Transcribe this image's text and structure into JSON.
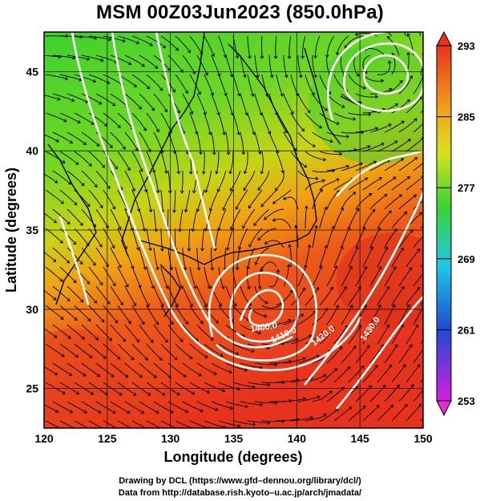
{
  "title": "MSM 00Z03Jun2023 (850.0hPa)",
  "x_axis": {
    "label": "Longitude (degrees)",
    "ticks": [
      "120",
      "125",
      "130",
      "135",
      "140",
      "145",
      "150"
    ],
    "range": [
      120,
      150
    ]
  },
  "y_axis": {
    "label": "Latitude  (degrees)",
    "ticks": [
      "25",
      "30",
      "35",
      "40",
      "45"
    ],
    "range": [
      22.5,
      47.5
    ]
  },
  "colorbar": {
    "ticks": [
      "293",
      "285",
      "277",
      "269",
      "261",
      "253"
    ],
    "min": 253,
    "max": 293
  },
  "contour_labels": [
    "1400.0",
    "1410.0",
    "1420.0",
    "1430.0"
  ],
  "footer": {
    "line1": "Drawing by DCL (https://www.gfd–dennou.org/library/dcl/)",
    "line2": "Data from http://database.rish.kyoto–u.ac.jp/arch/jmadata/"
  },
  "colors": {
    "warm": "#e8321e",
    "mid": "#8ed61e",
    "cool": "#3cd232",
    "contour": "#ffffff",
    "stream": "#000000"
  }
}
